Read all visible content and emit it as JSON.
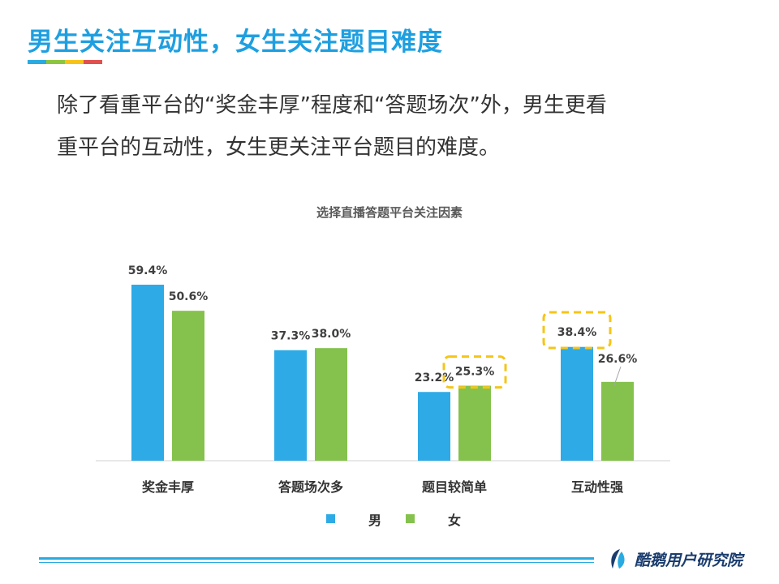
{
  "slide": {
    "title": "男生关注互动性，女生关注题目难度",
    "body_lines": [
      "除了看重平台的“奖金丰厚”程度和“答题场次”外，男生更看",
      "重平台的互动性，女生更关注平台题目的难度。"
    ],
    "underline_colors": [
      "#29abe2",
      "#8cc63f",
      "#f7c31a",
      "#e0504e"
    ]
  },
  "chart_data": {
    "type": "bar",
    "title": "选择直播答题平台关注因素",
    "categories": [
      "奖金丰厚",
      "答题场次多",
      "题目较简单",
      "互动性强"
    ],
    "series": [
      {
        "name": "男",
        "color": "#2eaae6",
        "values": [
          59.4,
          37.3,
          23.2,
          38.4
        ]
      },
      {
        "name": "女",
        "color": "#84c24d",
        "values": [
          50.6,
          38.0,
          25.3,
          26.6
        ]
      }
    ],
    "value_suffix": "%",
    "ylim": [
      0,
      60
    ],
    "legend_position": "bottom-center",
    "highlight_color": "#f5c518",
    "highlights": [
      {
        "category_index": 2,
        "series_index": 1
      },
      {
        "category_index": 3,
        "series_index": 0
      }
    ]
  },
  "footer": {
    "brand": "酷鹅用户研究院",
    "rule_color": "#29abe2",
    "logo_colors": [
      "#1a3c6e",
      "#29abe2"
    ]
  }
}
